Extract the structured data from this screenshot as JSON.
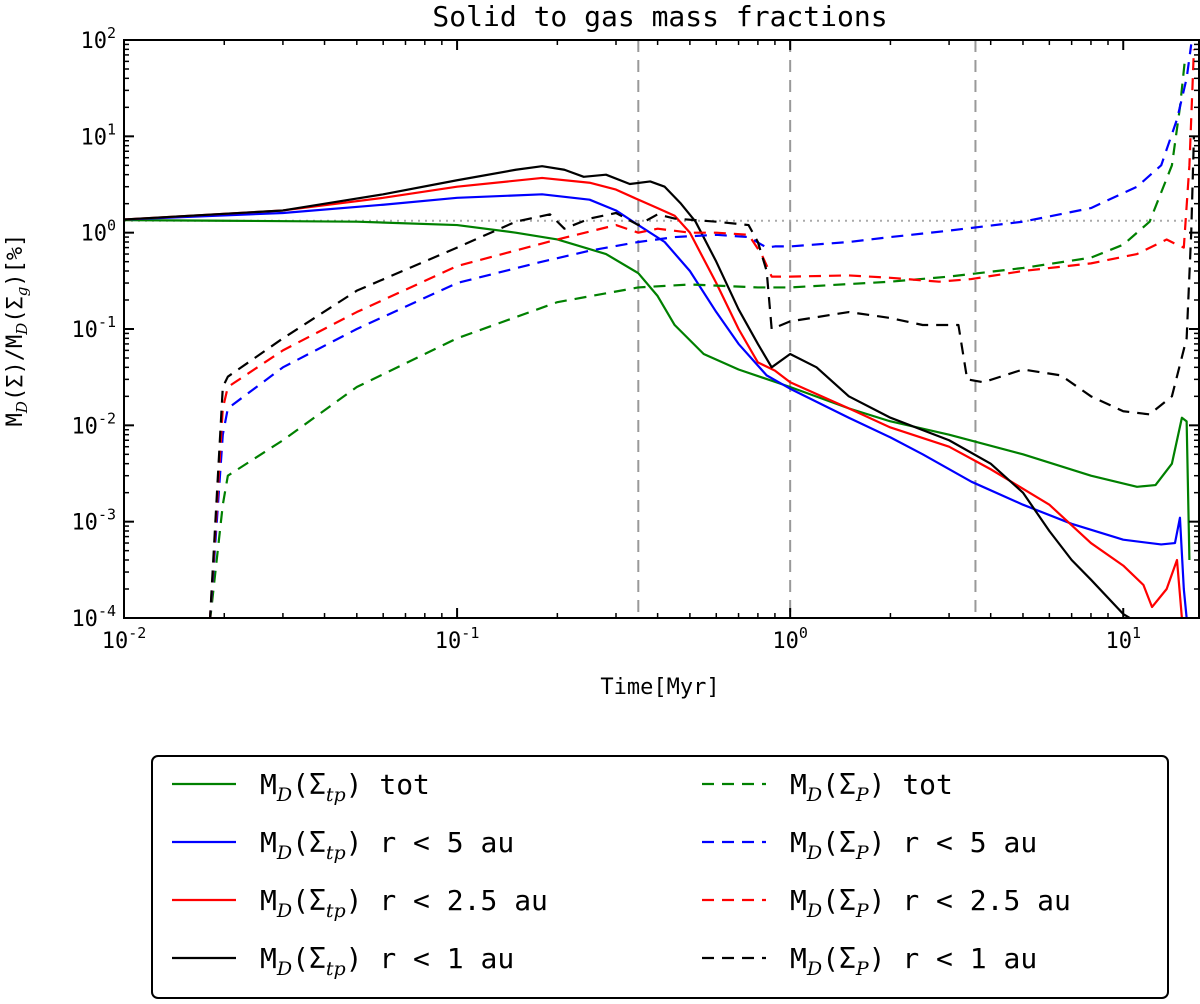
{
  "chart_data": {
    "type": "line",
    "title": "Solid to gas mass fractions",
    "xlabel": "Time[Myr]",
    "ylabel": {
      "prefix": "M",
      "sub1": "D",
      "mid": "(Σ)/M",
      "sub2": "D",
      "paren_open": "(Σ",
      "sub3": "g",
      "suffix": ")[%]"
    },
    "x_scale": "log",
    "y_scale": "log",
    "xlim": [
      0.01,
      17
    ],
    "ylim": [
      0.0001,
      100
    ],
    "x_ticks": [
      {
        "value": 0.01,
        "base": "10",
        "exp": "-2"
      },
      {
        "value": 0.1,
        "base": "10",
        "exp": "-1"
      },
      {
        "value": 1,
        "base": "10",
        "exp": "0"
      },
      {
        "value": 10,
        "base": "10",
        "exp": "1"
      }
    ],
    "y_ticks": [
      {
        "value": 0.0001,
        "base": "10",
        "exp": "-4"
      },
      {
        "value": 0.001,
        "base": "10",
        "exp": "-3"
      },
      {
        "value": 0.01,
        "base": "10",
        "exp": "-2"
      },
      {
        "value": 0.1,
        "base": "10",
        "exp": "-1"
      },
      {
        "value": 1,
        "base": "10",
        "exp": "0"
      },
      {
        "value": 10,
        "base": "10",
        "exp": "1"
      },
      {
        "value": 100,
        "base": "10",
        "exp": "2"
      }
    ],
    "reference_line_y": 1.33,
    "vertical_lines_x": [
      0.35,
      1.0,
      3.6
    ],
    "legend_position": "below",
    "series": [
      {
        "name": "M_D(Σ_tp) tot",
        "legend": {
          "pre": "M",
          "sub": "D",
          "sigma_sub": "tp",
          "post": " tot"
        },
        "color": "#008000",
        "dash": "solid",
        "points": [
          [
            0.01,
            1.35
          ],
          [
            0.02,
            1.33
          ],
          [
            0.05,
            1.3
          ],
          [
            0.1,
            1.2
          ],
          [
            0.15,
            1.0
          ],
          [
            0.2,
            0.85
          ],
          [
            0.28,
            0.6
          ],
          [
            0.35,
            0.38
          ],
          [
            0.4,
            0.22
          ],
          [
            0.45,
            0.11
          ],
          [
            0.55,
            0.055
          ],
          [
            0.7,
            0.038
          ],
          [
            1.0,
            0.025
          ],
          [
            1.5,
            0.015
          ],
          [
            2.0,
            0.011
          ],
          [
            3.0,
            0.008
          ],
          [
            5.0,
            0.005
          ],
          [
            8.0,
            0.003
          ],
          [
            11.0,
            0.0023
          ],
          [
            12.5,
            0.0024
          ],
          [
            14.0,
            0.004
          ],
          [
            15.0,
            0.012
          ],
          [
            15.5,
            0.011
          ],
          [
            15.8,
            0.0004
          ]
        ]
      },
      {
        "name": "M_D(Σ_tp) r < 5 au",
        "legend": {
          "pre": "M",
          "sub": "D",
          "sigma_sub": "tp",
          "post": " r < 5 au"
        },
        "color": "#0000ff",
        "dash": "solid",
        "points": [
          [
            0.01,
            1.37
          ],
          [
            0.03,
            1.6
          ],
          [
            0.06,
            1.95
          ],
          [
            0.1,
            2.3
          ],
          [
            0.18,
            2.5
          ],
          [
            0.25,
            2.2
          ],
          [
            0.3,
            1.7
          ],
          [
            0.35,
            1.2
          ],
          [
            0.42,
            0.8
          ],
          [
            0.5,
            0.4
          ],
          [
            0.6,
            0.15
          ],
          [
            0.7,
            0.07
          ],
          [
            0.85,
            0.033
          ],
          [
            1.0,
            0.024
          ],
          [
            1.5,
            0.012
          ],
          [
            2.0,
            0.0075
          ],
          [
            2.5,
            0.005
          ],
          [
            3.5,
            0.0026
          ],
          [
            5.0,
            0.0015
          ],
          [
            7.0,
            0.00095
          ],
          [
            10.0,
            0.00065
          ],
          [
            13.0,
            0.00058
          ],
          [
            14.3,
            0.0006
          ],
          [
            14.8,
            0.0011
          ],
          [
            15.2,
            0.0002
          ],
          [
            15.5,
            0.0001
          ]
        ]
      },
      {
        "name": "M_D(Σ_tp) r < 2.5 au",
        "legend": {
          "pre": "M",
          "sub": "D",
          "sigma_sub": "tp",
          "post": " r < 2.5 au"
        },
        "color": "#ff0000",
        "dash": "solid",
        "points": [
          [
            0.01,
            1.37
          ],
          [
            0.03,
            1.7
          ],
          [
            0.06,
            2.3
          ],
          [
            0.1,
            3.0
          ],
          [
            0.18,
            3.7
          ],
          [
            0.25,
            3.3
          ],
          [
            0.3,
            2.8
          ],
          [
            0.35,
            2.2
          ],
          [
            0.4,
            1.8
          ],
          [
            0.45,
            1.5
          ],
          [
            0.5,
            1.0
          ],
          [
            0.6,
            0.3
          ],
          [
            0.7,
            0.1
          ],
          [
            0.8,
            0.045
          ],
          [
            0.9,
            0.037
          ],
          [
            1.0,
            0.028
          ],
          [
            1.5,
            0.015
          ],
          [
            2.0,
            0.0095
          ],
          [
            3.0,
            0.006
          ],
          [
            4.0,
            0.0035
          ],
          [
            6.0,
            0.0015
          ],
          [
            8.0,
            0.0006
          ],
          [
            10.0,
            0.00035
          ],
          [
            11.5,
            0.00022
          ],
          [
            12.2,
            0.00013
          ],
          [
            13.5,
            0.0002
          ],
          [
            14.5,
            0.0004
          ],
          [
            15.0,
            0.0001
          ]
        ]
      },
      {
        "name": "M_D(Σ_tp) r < 1 au",
        "legend": {
          "pre": "M",
          "sub": "D",
          "sigma_sub": "tp",
          "post": " r < 1 au"
        },
        "color": "#000000",
        "dash": "solid",
        "points": [
          [
            0.01,
            1.37
          ],
          [
            0.03,
            1.7
          ],
          [
            0.06,
            2.5
          ],
          [
            0.1,
            3.5
          ],
          [
            0.15,
            4.5
          ],
          [
            0.18,
            4.9
          ],
          [
            0.21,
            4.5
          ],
          [
            0.24,
            3.8
          ],
          [
            0.28,
            4.0
          ],
          [
            0.33,
            3.2
          ],
          [
            0.38,
            3.4
          ],
          [
            0.42,
            3.0
          ],
          [
            0.47,
            2.0
          ],
          [
            0.52,
            1.3
          ],
          [
            0.6,
            0.5
          ],
          [
            0.7,
            0.16
          ],
          [
            0.8,
            0.07
          ],
          [
            0.88,
            0.04
          ],
          [
            1.0,
            0.055
          ],
          [
            1.2,
            0.04
          ],
          [
            1.5,
            0.02
          ],
          [
            2.0,
            0.012
          ],
          [
            3.0,
            0.007
          ],
          [
            4.0,
            0.004
          ],
          [
            5.0,
            0.002
          ],
          [
            6.0,
            0.0008
          ],
          [
            7.0,
            0.0004
          ],
          [
            8.0,
            0.00025
          ],
          [
            10.0,
            0.00011
          ],
          [
            11.0,
            9e-05
          ]
        ]
      },
      {
        "name": "M_D(Σ_P) tot",
        "legend": {
          "pre": "M",
          "sub": "D",
          "sigma_sub": "P",
          "post": " tot"
        },
        "color": "#008000",
        "dash": "dashed",
        "points": [
          [
            0.0181,
            9e-05
          ],
          [
            0.0198,
            0.0015
          ],
          [
            0.0205,
            0.003
          ],
          [
            0.03,
            0.007
          ],
          [
            0.05,
            0.025
          ],
          [
            0.1,
            0.08
          ],
          [
            0.2,
            0.19
          ],
          [
            0.35,
            0.27
          ],
          [
            0.5,
            0.29
          ],
          [
            0.8,
            0.27
          ],
          [
            1.0,
            0.27
          ],
          [
            2.0,
            0.31
          ],
          [
            3.0,
            0.35
          ],
          [
            5.0,
            0.43
          ],
          [
            8.0,
            0.55
          ],
          [
            10.0,
            0.75
          ],
          [
            12.0,
            1.3
          ],
          [
            14.0,
            5.0
          ],
          [
            14.8,
            20.0
          ],
          [
            15.3,
            60.0
          ]
        ]
      },
      {
        "name": "M_D(Σ_P) r < 5 au",
        "legend": {
          "pre": "M",
          "sub": "D",
          "sigma_sub": "P",
          "post": " r < 5 au"
        },
        "color": "#0000ff",
        "dash": "dashed",
        "points": [
          [
            0.0181,
            9e-05
          ],
          [
            0.0198,
            0.008
          ],
          [
            0.0205,
            0.015
          ],
          [
            0.03,
            0.04
          ],
          [
            0.05,
            0.1
          ],
          [
            0.1,
            0.3
          ],
          [
            0.18,
            0.5
          ],
          [
            0.25,
            0.65
          ],
          [
            0.35,
            0.8
          ],
          [
            0.45,
            0.9
          ],
          [
            0.6,
            0.95
          ],
          [
            0.75,
            0.9
          ],
          [
            0.85,
            0.7
          ],
          [
            0.9,
            0.72
          ],
          [
            1.0,
            0.72
          ],
          [
            1.5,
            0.8
          ],
          [
            2.0,
            0.9
          ],
          [
            3.0,
            1.05
          ],
          [
            5.0,
            1.3
          ],
          [
            8.0,
            1.8
          ],
          [
            11.0,
            3.0
          ],
          [
            13.0,
            5.0
          ],
          [
            14.5,
            15.0
          ],
          [
            15.5,
            40.0
          ],
          [
            16.0,
            90.0
          ]
        ]
      },
      {
        "name": "M_D(Σ_P) r < 2.5 au",
        "legend": {
          "pre": "M",
          "sub": "D",
          "sigma_sub": "P",
          "post": " r < 2.5 au"
        },
        "color": "#ff0000",
        "dash": "dashed",
        "points": [
          [
            0.0181,
            9e-05
          ],
          [
            0.0198,
            0.015
          ],
          [
            0.0205,
            0.025
          ],
          [
            0.03,
            0.06
          ],
          [
            0.05,
            0.15
          ],
          [
            0.1,
            0.45
          ],
          [
            0.2,
            0.85
          ],
          [
            0.3,
            1.2
          ],
          [
            0.35,
            1.0
          ],
          [
            0.4,
            1.1
          ],
          [
            0.5,
            1.0
          ],
          [
            0.6,
            1.0
          ],
          [
            0.75,
            0.95
          ],
          [
            0.82,
            0.6
          ],
          [
            0.88,
            0.35
          ],
          [
            1.0,
            0.35
          ],
          [
            1.5,
            0.36
          ],
          [
            2.0,
            0.34
          ],
          [
            2.8,
            0.31
          ],
          [
            3.5,
            0.33
          ],
          [
            5.0,
            0.4
          ],
          [
            8.0,
            0.48
          ],
          [
            11.0,
            0.6
          ],
          [
            13.5,
            0.85
          ],
          [
            14.5,
            0.75
          ],
          [
            15.2,
            0.7
          ],
          [
            15.8,
            5.0
          ],
          [
            16.3,
            80.0
          ]
        ]
      },
      {
        "name": "M_D(Σ_P) r < 1 au",
        "legend": {
          "pre": "M",
          "sub": "D",
          "sigma_sub": "P",
          "post": " r < 1 au"
        },
        "color": "#000000",
        "dash": "dashed",
        "points": [
          [
            0.0181,
            9e-05
          ],
          [
            0.0198,
            0.025
          ],
          [
            0.0205,
            0.032
          ],
          [
            0.03,
            0.08
          ],
          [
            0.05,
            0.25
          ],
          [
            0.1,
            0.7
          ],
          [
            0.15,
            1.3
          ],
          [
            0.19,
            1.55
          ],
          [
            0.21,
            1.1
          ],
          [
            0.25,
            1.4
          ],
          [
            0.3,
            1.6
          ],
          [
            0.35,
            1.2
          ],
          [
            0.4,
            1.55
          ],
          [
            0.45,
            1.4
          ],
          [
            0.6,
            1.3
          ],
          [
            0.75,
            1.2
          ],
          [
            0.8,
            0.8
          ],
          [
            0.85,
            0.4
          ],
          [
            0.88,
            0.1
          ],
          [
            1.0,
            0.12
          ],
          [
            1.5,
            0.15
          ],
          [
            2.0,
            0.13
          ],
          [
            2.5,
            0.11
          ],
          [
            3.2,
            0.11
          ],
          [
            3.4,
            0.03
          ],
          [
            3.8,
            0.028
          ],
          [
            5.0,
            0.038
          ],
          [
            6.5,
            0.033
          ],
          [
            8.0,
            0.02
          ],
          [
            10.0,
            0.014
          ],
          [
            12.0,
            0.013
          ],
          [
            14.0,
            0.02
          ],
          [
            15.5,
            0.08
          ],
          [
            16.0,
            1.0
          ],
          [
            16.3,
            10.0
          ]
        ]
      }
    ]
  }
}
